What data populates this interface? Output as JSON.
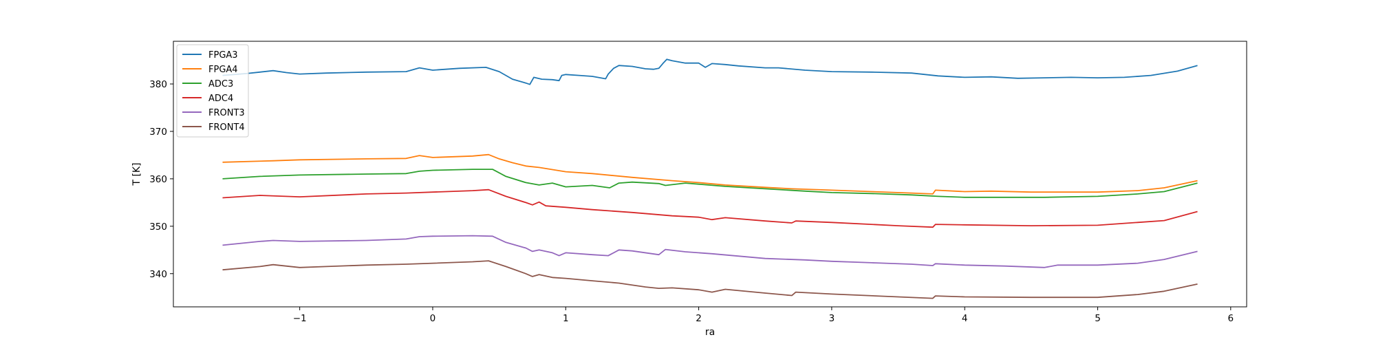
{
  "chart_data": {
    "type": "line",
    "xlabel": "ra",
    "ylabel": "T [K]",
    "xlim": [
      -1.95,
      6.12
    ],
    "ylim": [
      333.0,
      389.0
    ],
    "xticks": [
      -1,
      0,
      1,
      2,
      3,
      4,
      5,
      6
    ],
    "xtick_labels": [
      "−1",
      "0",
      "1",
      "2",
      "3",
      "4",
      "5",
      "6"
    ],
    "yticks": [
      340,
      350,
      360,
      370,
      380
    ],
    "ytick_labels": [
      "340",
      "350",
      "360",
      "370",
      "380"
    ],
    "legend_position": "upper-left",
    "grid": false,
    "series": [
      {
        "name": "FPGA3",
        "color": "#1f77b4",
        "x": [
          -1.58,
          -1.4,
          -1.3,
          -1.2,
          -1.1,
          -1.0,
          -0.8,
          -0.5,
          -0.2,
          -0.1,
          0.0,
          0.2,
          0.4,
          0.5,
          0.6,
          0.7,
          0.73,
          0.76,
          0.82,
          0.9,
          0.95,
          0.97,
          1.0,
          1.1,
          1.2,
          1.3,
          1.32,
          1.36,
          1.4,
          1.5,
          1.6,
          1.66,
          1.7,
          1.73,
          1.76,
          1.8,
          1.9,
          2.0,
          2.05,
          2.1,
          2.2,
          2.3,
          2.5,
          2.6,
          2.8,
          3.0,
          3.3,
          3.6,
          3.8,
          4.0,
          4.2,
          4.4,
          4.6,
          4.8,
          5.0,
          5.2,
          5.4,
          5.6,
          5.75
        ],
        "values": [
          381.8,
          382.2,
          382.5,
          382.8,
          382.4,
          382.1,
          382.3,
          382.5,
          382.6,
          383.4,
          382.9,
          383.3,
          383.5,
          382.6,
          381.0,
          380.2,
          379.9,
          381.4,
          381.0,
          380.9,
          380.7,
          381.8,
          382.0,
          381.8,
          381.6,
          381.1,
          382.1,
          383.3,
          383.9,
          383.7,
          383.2,
          383.1,
          383.3,
          384.3,
          385.2,
          384.9,
          384.4,
          384.4,
          383.5,
          384.3,
          384.1,
          383.8,
          383.4,
          383.4,
          382.9,
          382.6,
          382.5,
          382.3,
          381.7,
          381.4,
          381.5,
          381.2,
          381.3,
          381.4,
          381.3,
          381.4,
          381.8,
          382.7,
          383.9
        ]
      },
      {
        "name": "FPGA4",
        "color": "#ff7f0e",
        "x": [
          -1.58,
          -1.2,
          -1.0,
          -0.5,
          -0.2,
          -0.1,
          0.0,
          0.3,
          0.42,
          0.5,
          0.6,
          0.7,
          0.8,
          1.0,
          1.2,
          1.5,
          1.8,
          2.0,
          2.2,
          2.5,
          2.7,
          3.0,
          3.3,
          3.6,
          3.76,
          3.78,
          4.0,
          4.2,
          4.5,
          4.8,
          5.0,
          5.3,
          5.5,
          5.75
        ],
        "values": [
          363.5,
          363.8,
          364.0,
          364.2,
          364.3,
          364.9,
          364.5,
          364.8,
          365.1,
          364.2,
          363.4,
          362.7,
          362.4,
          361.5,
          361.1,
          360.3,
          359.6,
          359.2,
          358.7,
          358.2,
          357.9,
          357.6,
          357.3,
          357.0,
          356.8,
          357.6,
          357.3,
          357.4,
          357.2,
          357.2,
          357.2,
          357.5,
          358.1,
          359.6
        ]
      },
      {
        "name": "ADC3",
        "color": "#2ca02c",
        "x": [
          -1.58,
          -1.3,
          -1.0,
          -0.5,
          -0.2,
          -0.1,
          0.0,
          0.3,
          0.45,
          0.55,
          0.7,
          0.8,
          0.9,
          0.95,
          1.0,
          1.2,
          1.33,
          1.4,
          1.5,
          1.7,
          1.75,
          1.9,
          2.2,
          2.5,
          2.8,
          3.0,
          3.3,
          3.6,
          3.8,
          4.0,
          4.3,
          4.6,
          5.0,
          5.3,
          5.5,
          5.75
        ],
        "values": [
          360.0,
          360.5,
          360.8,
          361.0,
          361.1,
          361.6,
          361.8,
          362.0,
          362.0,
          360.5,
          359.2,
          358.7,
          359.1,
          358.7,
          358.3,
          358.6,
          358.1,
          359.1,
          359.3,
          359.0,
          358.6,
          359.1,
          358.4,
          357.9,
          357.4,
          357.1,
          356.9,
          356.6,
          356.3,
          356.1,
          356.1,
          356.1,
          356.3,
          356.8,
          357.3,
          359.1
        ]
      },
      {
        "name": "ADC4",
        "color": "#d62728",
        "x": [
          -1.58,
          -1.3,
          -1.0,
          -0.5,
          -0.2,
          0.0,
          0.3,
          0.42,
          0.55,
          0.7,
          0.75,
          0.8,
          0.85,
          1.0,
          1.2,
          1.5,
          1.8,
          2.0,
          2.1,
          2.2,
          2.5,
          2.7,
          2.73,
          3.0,
          3.5,
          3.76,
          3.78,
          4.0,
          4.5,
          5.0,
          5.3,
          5.5,
          5.75
        ],
        "values": [
          356.0,
          356.5,
          356.2,
          356.8,
          357.0,
          357.2,
          357.5,
          357.7,
          356.3,
          355.0,
          354.5,
          355.1,
          354.3,
          354.0,
          353.5,
          352.9,
          352.2,
          351.9,
          351.4,
          351.8,
          351.1,
          350.7,
          351.1,
          350.8,
          350.1,
          349.8,
          350.4,
          350.3,
          350.1,
          350.2,
          350.8,
          351.2,
          353.1
        ]
      },
      {
        "name": "FRONT3",
        "color": "#9467bd",
        "x": [
          -1.58,
          -1.3,
          -1.2,
          -1.0,
          -0.5,
          -0.2,
          -0.1,
          0.0,
          0.3,
          0.45,
          0.55,
          0.7,
          0.75,
          0.8,
          0.9,
          0.95,
          1.0,
          1.2,
          1.32,
          1.4,
          1.5,
          1.7,
          1.75,
          1.9,
          2.1,
          2.5,
          2.8,
          3.0,
          3.3,
          3.6,
          3.76,
          3.78,
          4.0,
          4.3,
          4.6,
          4.7,
          5.0,
          5.3,
          5.5,
          5.75
        ],
        "values": [
          346.0,
          346.8,
          347.0,
          346.8,
          347.0,
          347.3,
          347.8,
          347.9,
          348.0,
          347.9,
          346.6,
          345.4,
          344.7,
          345.0,
          344.4,
          343.8,
          344.4,
          344.0,
          343.8,
          345.0,
          344.8,
          344.0,
          345.1,
          344.6,
          344.2,
          343.2,
          342.9,
          342.6,
          342.3,
          342.0,
          341.7,
          342.1,
          341.8,
          341.6,
          341.3,
          341.8,
          341.8,
          342.2,
          343.0,
          344.7
        ]
      },
      {
        "name": "FRONT4",
        "color": "#8c564b",
        "x": [
          -1.58,
          -1.3,
          -1.2,
          -1.0,
          -0.8,
          -0.5,
          -0.2,
          0.0,
          0.3,
          0.42,
          0.55,
          0.7,
          0.75,
          0.8,
          0.9,
          1.0,
          1.2,
          1.4,
          1.6,
          1.7,
          1.8,
          2.0,
          2.1,
          2.2,
          2.5,
          2.7,
          2.73,
          3.0,
          3.5,
          3.76,
          3.78,
          4.0,
          4.5,
          5.0,
          5.3,
          5.5,
          5.75
        ],
        "values": [
          340.8,
          341.5,
          341.9,
          341.3,
          341.5,
          341.8,
          342.0,
          342.2,
          342.5,
          342.7,
          341.5,
          340.0,
          339.4,
          339.8,
          339.2,
          339.0,
          338.5,
          338.0,
          337.2,
          336.9,
          337.0,
          336.6,
          336.1,
          336.7,
          335.9,
          335.4,
          336.1,
          335.7,
          335.1,
          334.8,
          335.3,
          335.1,
          335.0,
          335.0,
          335.6,
          336.3,
          337.8
        ]
      }
    ]
  }
}
